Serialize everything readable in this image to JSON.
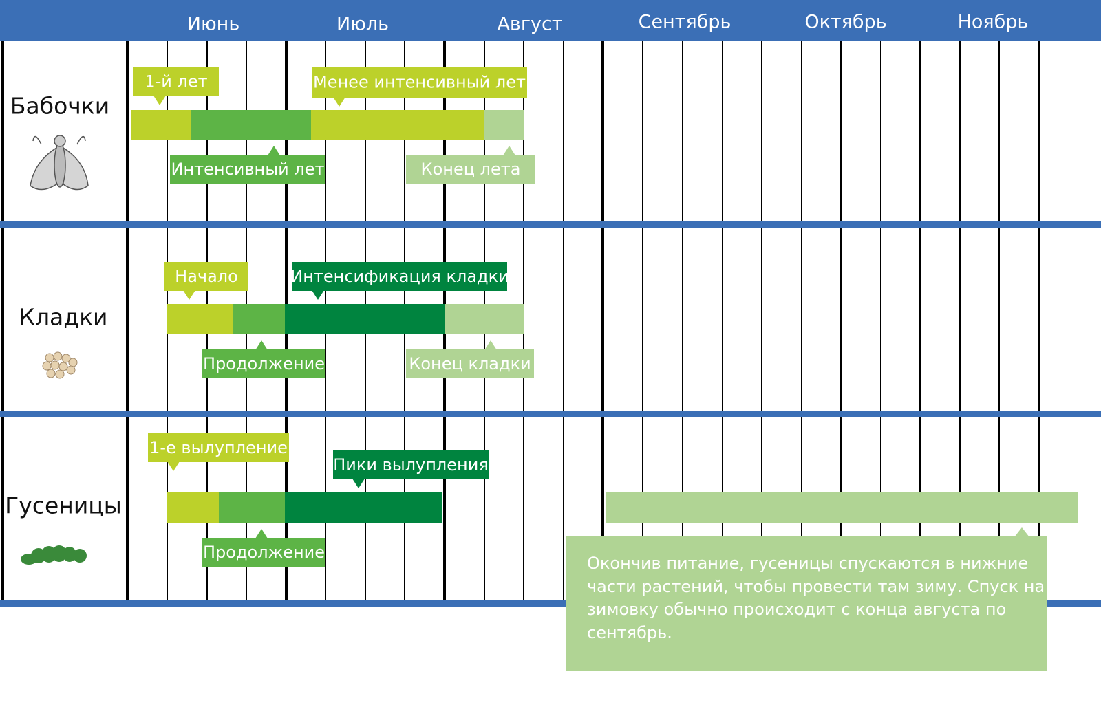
{
  "months": [
    "Июнь",
    "Июль",
    "Август",
    "Сентябрь",
    "Октябрь",
    "Ноябрь"
  ],
  "rows": [
    {
      "label": "Бабочки",
      "callouts": [
        "1-й лет",
        "Менее интенсивный лет",
        "Интенсивный лет",
        "Конец лета"
      ]
    },
    {
      "label": "Кладки",
      "callouts": [
        "Начало",
        "Интенсификация кладки",
        "Продолжение",
        "Конец кладки"
      ]
    },
    {
      "label": "Гусеницы",
      "callouts": [
        "1-е вылупление",
        "Пики вылупления",
        "Продолжение"
      ]
    }
  ],
  "note": [
    "Окончив питание, гусеницы спускаются в нижние",
    "части растений, чтобы провести там зиму. Спуск на",
    "зимовку обычно происходит с конца августа по",
    "сентябрь."
  ]
}
